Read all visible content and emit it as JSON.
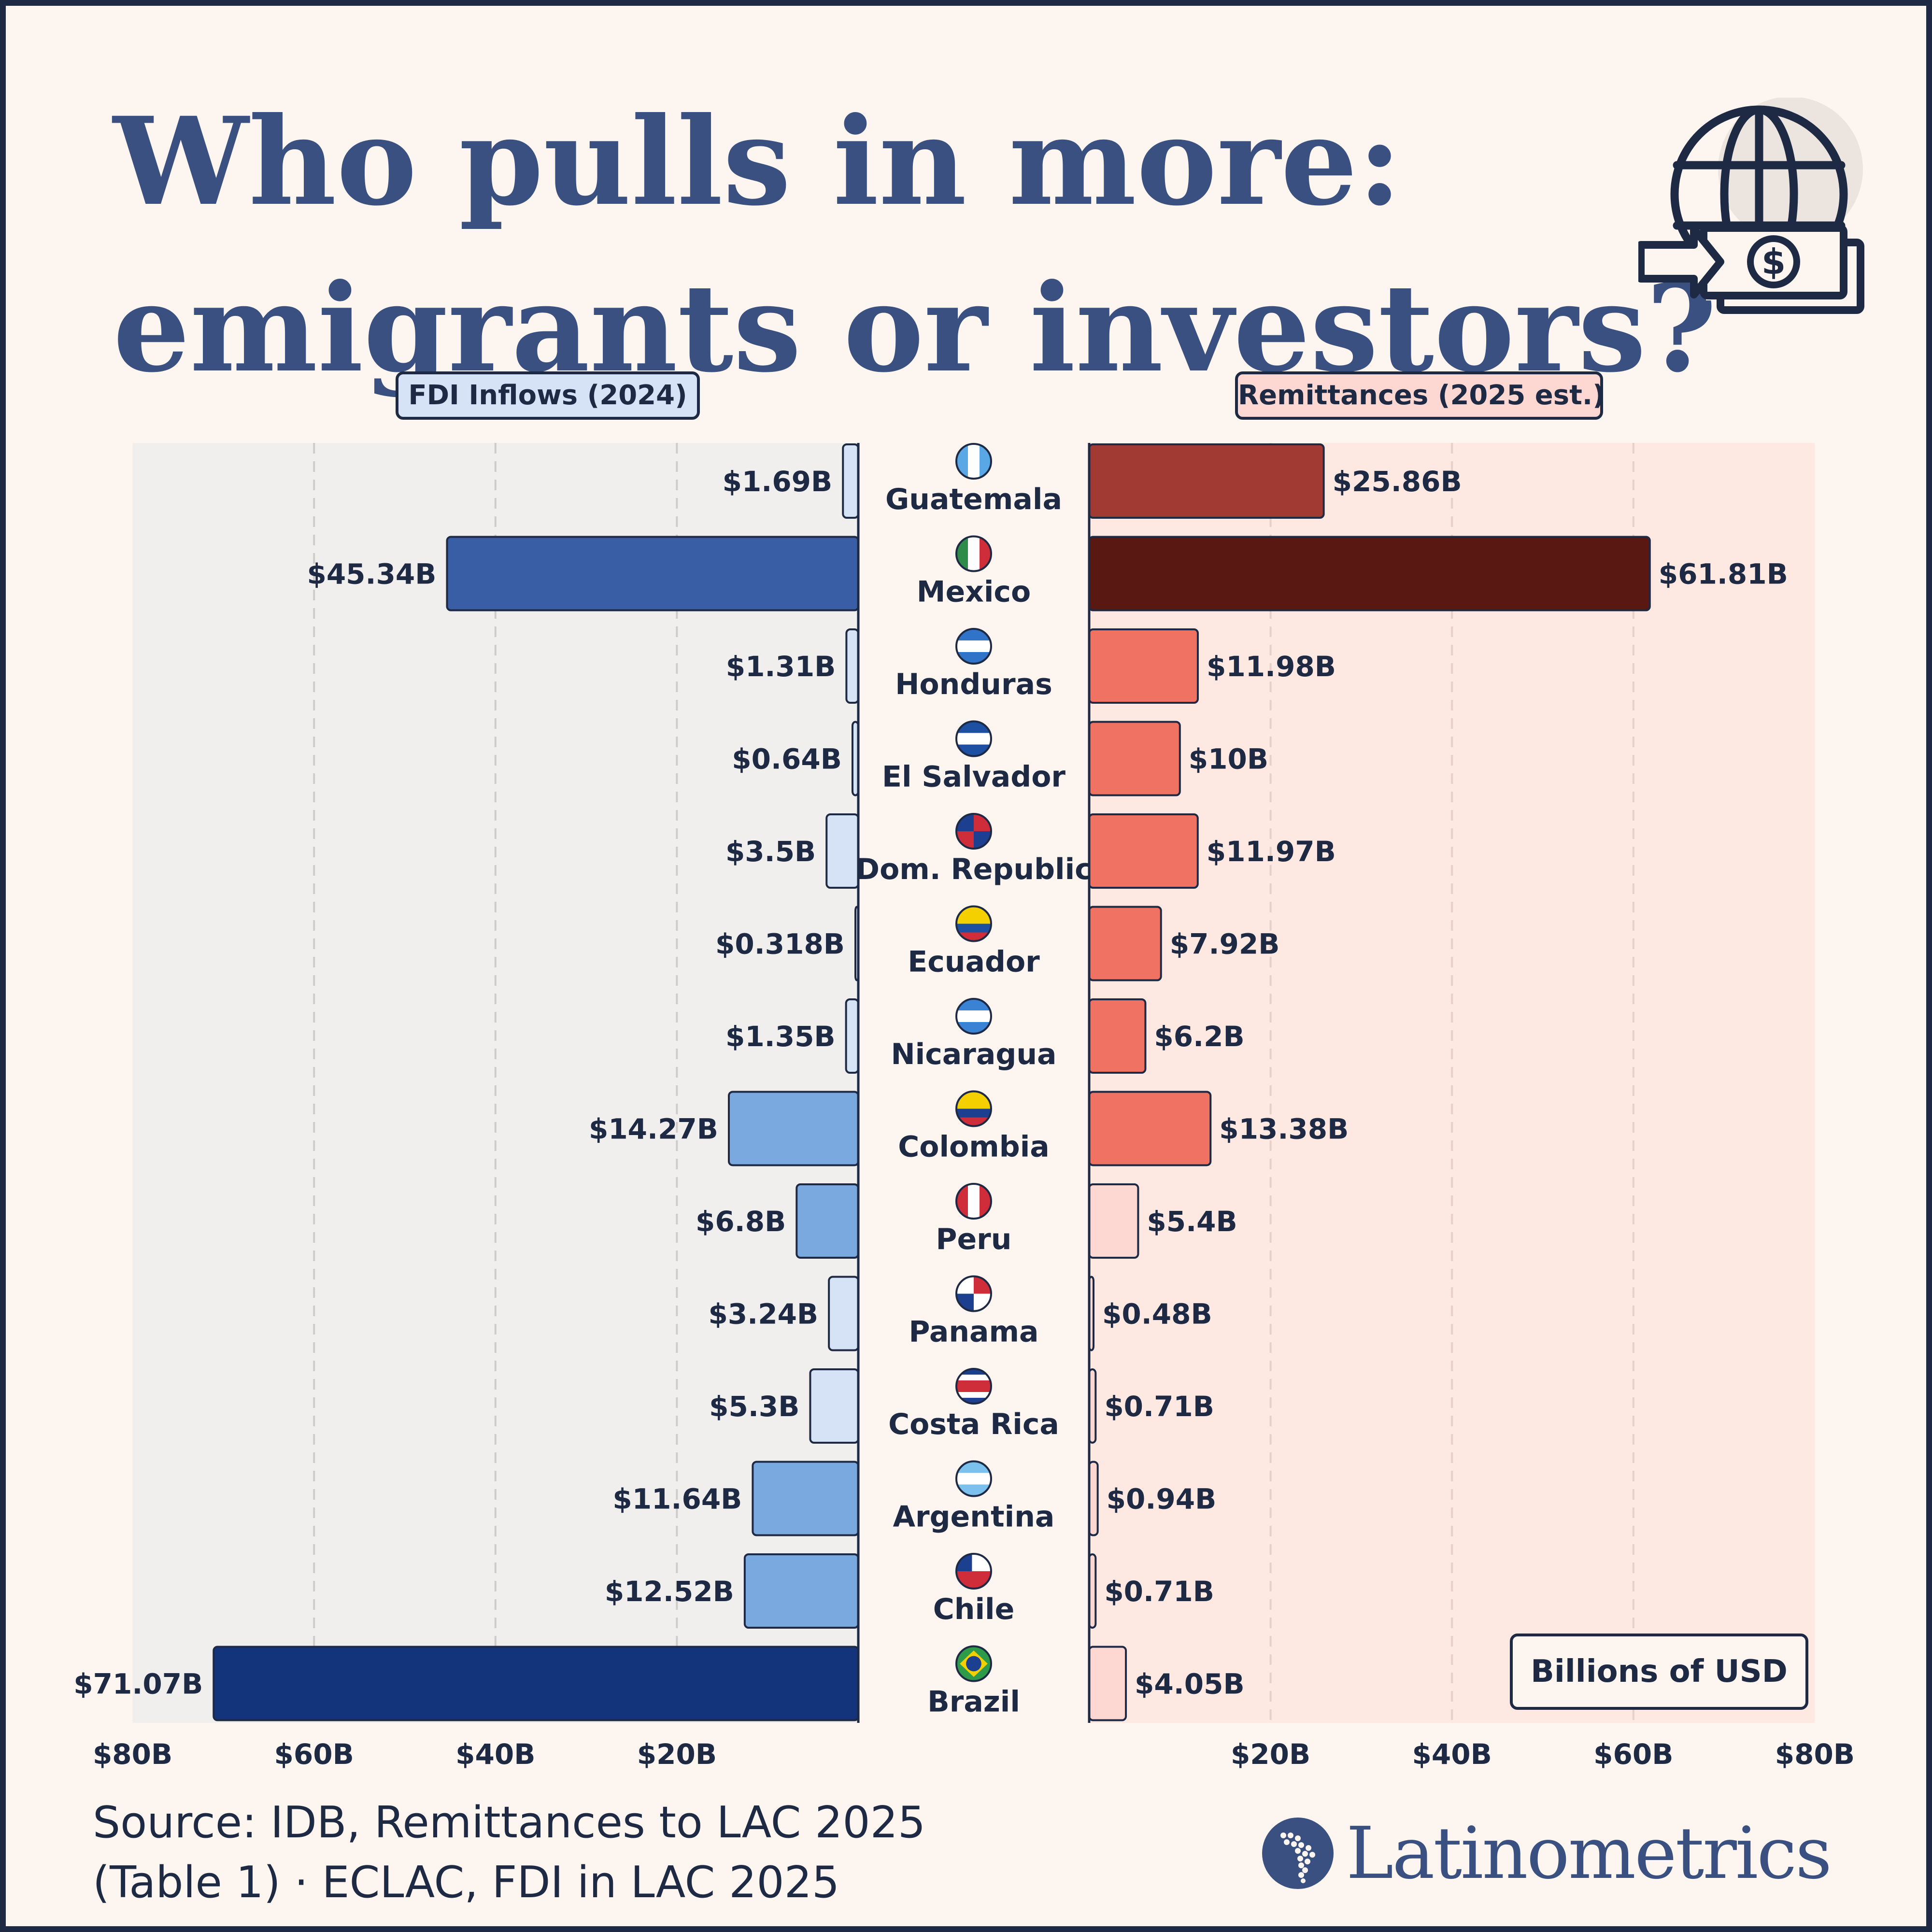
{
  "title": {
    "line1": "Who pulls in more:",
    "line2": "emigrants or investors?"
  },
  "legend": {
    "fdi": "FDI Inflows (2024)",
    "remittances": "Remittances (2025 est.)"
  },
  "units_box": "Billions of USD",
  "source": {
    "line1": "Source: IDB, Remittances to LAC 2025",
    "line2": "(Table 1) · ECLAC, FDI in LAC 2025"
  },
  "brand": "Latinometrics",
  "icons": {
    "header": "globe-money-transfer-icon",
    "brand": "latin-america-map-icon"
  },
  "colors": {
    "fdi_light": "#d6e2f5",
    "fdi_mid": "#7aa9e0",
    "fdi_dark": "#3a5ea6",
    "fdi_darkest": "#13337a",
    "rem_light": "#fdd7d2",
    "rem_mid": "#ef7262",
    "rem_dark": "#a13a33",
    "rem_darkest": "#5a1813",
    "outline": "#1e2a44",
    "title": "#3a5080"
  },
  "chart_data": {
    "type": "bar",
    "orientation": "horizontal-diverging",
    "categories": [
      "Guatemala",
      "Mexico",
      "Honduras",
      "El Salvador",
      "Dom. Republic",
      "Ecuador",
      "Nicaragua",
      "Colombia",
      "Peru",
      "Panama",
      "Costa Rica",
      "Argentina",
      "Chile",
      "Brazil"
    ],
    "series": [
      {
        "name": "FDI Inflows (2024)",
        "side": "left",
        "values": [
          1.69,
          45.34,
          1.31,
          0.64,
          3.5,
          0.318,
          1.35,
          14.27,
          6.8,
          3.24,
          5.3,
          11.64,
          12.52,
          71.07
        ],
        "labels": [
          "$1.69B",
          "$45.34B",
          "$1.31B",
          "$0.64B",
          "$3.5B",
          "$0.318B",
          "$1.35B",
          "$14.27B",
          "$6.8B",
          "$3.24B",
          "$5.3B",
          "$11.64B",
          "$12.52B",
          "$71.07B"
        ]
      },
      {
        "name": "Remittances (2025 est.)",
        "side": "right",
        "values": [
          25.86,
          61.81,
          11.98,
          10,
          11.97,
          7.92,
          6.2,
          13.38,
          5.4,
          0.48,
          0.71,
          0.94,
          0.71,
          4.05
        ],
        "labels": [
          "$25.86B",
          "$61.81B",
          "$11.98B",
          "$10B",
          "$11.97B",
          "$7.92B",
          "$6.2B",
          "$13.38B",
          "$5.4B",
          "$0.48B",
          "$0.71B",
          "$0.94B",
          "$0.71B",
          "$4.05B"
        ]
      }
    ],
    "xlim": [
      0,
      80
    ],
    "left_ticks": [
      "$80B",
      "$60B",
      "$40B",
      "$20B"
    ],
    "right_ticks": [
      "$20B",
      "$40B",
      "$60B",
      "$80B"
    ],
    "unit": "Billions of USD",
    "grid": true
  }
}
